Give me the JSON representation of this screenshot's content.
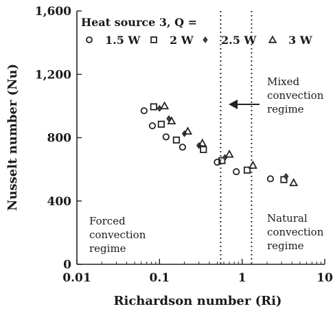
{
  "chart_data": {
    "type": "scatter",
    "xlabel": "Richardson number (Ri)",
    "ylabel": "Nusselt number (Nu)",
    "x_scale": "log",
    "xlim": [
      0.01,
      10
    ],
    "ylim": [
      0,
      1600
    ],
    "x_ticks": [
      {
        "value": 0.01,
        "label": "0.01"
      },
      {
        "value": 0.1,
        "label": "0.1"
      },
      {
        "value": 1,
        "label": "1"
      },
      {
        "value": 10,
        "label": "10"
      }
    ],
    "y_ticks": [
      {
        "value": 0,
        "label": "0"
      },
      {
        "value": 400,
        "label": "400"
      },
      {
        "value": 800,
        "label": "800"
      },
      {
        "value": 1200,
        "label": "1,200"
      },
      {
        "value": 1600,
        "label": "1,600"
      }
    ],
    "grid": false,
    "legend": {
      "title": "Heat source 3, Q =",
      "placement": "top-left"
    },
    "series": [
      {
        "name": "1.5 W",
        "marker": "circle",
        "points": [
          {
            "x": 0.065,
            "y": 970
          },
          {
            "x": 0.082,
            "y": 875
          },
          {
            "x": 0.12,
            "y": 805
          },
          {
            "x": 0.19,
            "y": 740
          },
          {
            "x": 0.5,
            "y": 645
          },
          {
            "x": 0.85,
            "y": 585
          },
          {
            "x": 2.2,
            "y": 540
          }
        ]
      },
      {
        "name": "2 W",
        "marker": "square",
        "points": [
          {
            "x": 0.085,
            "y": 995
          },
          {
            "x": 0.105,
            "y": 885
          },
          {
            "x": 0.16,
            "y": 785
          },
          {
            "x": 0.34,
            "y": 725
          },
          {
            "x": 0.57,
            "y": 655
          },
          {
            "x": 1.15,
            "y": 595
          },
          {
            "x": 3.2,
            "y": 535
          }
        ]
      },
      {
        "name": "2.5 W",
        "marker": "diamond",
        "points": [
          {
            "x": 0.1,
            "y": 985
          },
          {
            "x": 0.13,
            "y": 920
          },
          {
            "x": 0.2,
            "y": 825
          },
          {
            "x": 0.3,
            "y": 750
          },
          {
            "x": 0.62,
            "y": 675
          },
          {
            "x": 3.4,
            "y": 555
          }
        ]
      },
      {
        "name": "3 W",
        "marker": "triangle",
        "points": [
          {
            "x": 0.115,
            "y": 1000
          },
          {
            "x": 0.14,
            "y": 905
          },
          {
            "x": 0.22,
            "y": 840
          },
          {
            "x": 0.33,
            "y": 765
          },
          {
            "x": 0.7,
            "y": 695
          },
          {
            "x": 1.35,
            "y": 625
          },
          {
            "x": 4.2,
            "y": 515
          }
        ]
      }
    ],
    "reference_lines": [
      {
        "axis": "x",
        "value": 0.55,
        "style": "dotted"
      },
      {
        "axis": "x",
        "value": 1.3,
        "style": "dotted"
      }
    ],
    "annotations": [
      {
        "lines": [
          "Mixed",
          "convection",
          "regime"
        ],
        "arrow": "left"
      },
      {
        "lines": [
          "Forced",
          "convection",
          "regime"
        ]
      },
      {
        "lines": [
          "Natural",
          "convection",
          "regime"
        ]
      }
    ]
  }
}
